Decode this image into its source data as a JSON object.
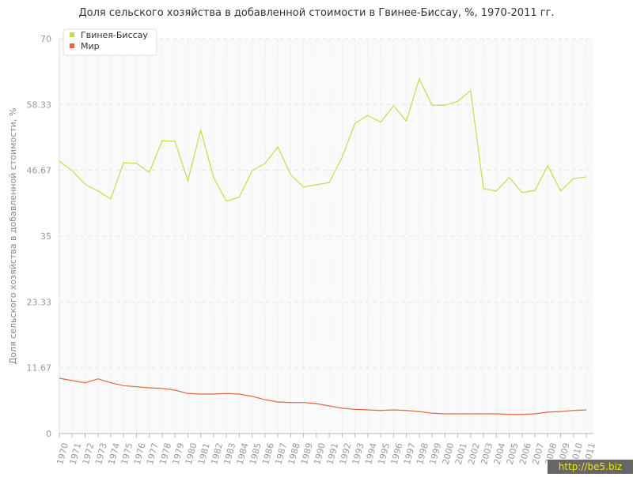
{
  "chart_data": {
    "type": "line",
    "title": "Доля сельского хозяйства в добавленной стоимости в Гвинее-Биссау, %, 1970-2011 гг.",
    "y_label": "Доля сельского хозяйства в добавленной стоимости, %",
    "categories": [
      "1970",
      "1971",
      "1972",
      "1973",
      "1974",
      "1975",
      "1976",
      "1977",
      "1978",
      "1979",
      "1980",
      "1981",
      "1982",
      "1983",
      "1984",
      "1985",
      "1986",
      "1987",
      "1988",
      "1989",
      "1990",
      "1991",
      "1992",
      "1993",
      "1994",
      "1995",
      "1996",
      "1997",
      "1998",
      "1999",
      "2000",
      "2001",
      "2002",
      "2003",
      "2004",
      "2005",
      "2006",
      "2007",
      "2008",
      "2009",
      "2010",
      "2011"
    ],
    "series": [
      {
        "name": "Гвинея-Биссау",
        "color": "#c5dc4c",
        "values": [
          48.3,
          46.6,
          44.2,
          43.0,
          41.6,
          48.0,
          47.9,
          46.3,
          51.9,
          51.8,
          44.8,
          53.8,
          45.4,
          41.2,
          41.9,
          46.6,
          47.9,
          50.8,
          45.9,
          43.7,
          44.1,
          44.5,
          49.0,
          55.0,
          56.4,
          55.2,
          58.1,
          55.4,
          62.9,
          58.2,
          58.2,
          58.9,
          60.8,
          43.4,
          43.0,
          45.4,
          42.7,
          43.1,
          47.5,
          43.0,
          45.2,
          45.5
        ]
      },
      {
        "name": "Мир",
        "color": "#e0693e",
        "values": [
          9.8,
          9.4,
          9.0,
          9.7,
          9.0,
          8.5,
          8.3,
          8.1,
          8.0,
          7.7,
          7.1,
          7.0,
          7.0,
          7.1,
          7.0,
          6.6,
          6.0,
          5.6,
          5.5,
          5.5,
          5.3,
          4.9,
          4.5,
          4.3,
          4.2,
          4.1,
          4.2,
          4.1,
          3.9,
          3.6,
          3.5,
          3.5,
          3.5,
          3.5,
          3.5,
          3.4,
          3.4,
          3.5,
          3.8,
          3.9,
          4.1,
          4.2
        ]
      }
    ],
    "ylim": [
      0,
      70
    ],
    "yticks": [
      0,
      11.67,
      23.33,
      35,
      46.67,
      58.33,
      70
    ],
    "grid": true,
    "legend": "top-left",
    "watermark": "http://be5.biz"
  }
}
